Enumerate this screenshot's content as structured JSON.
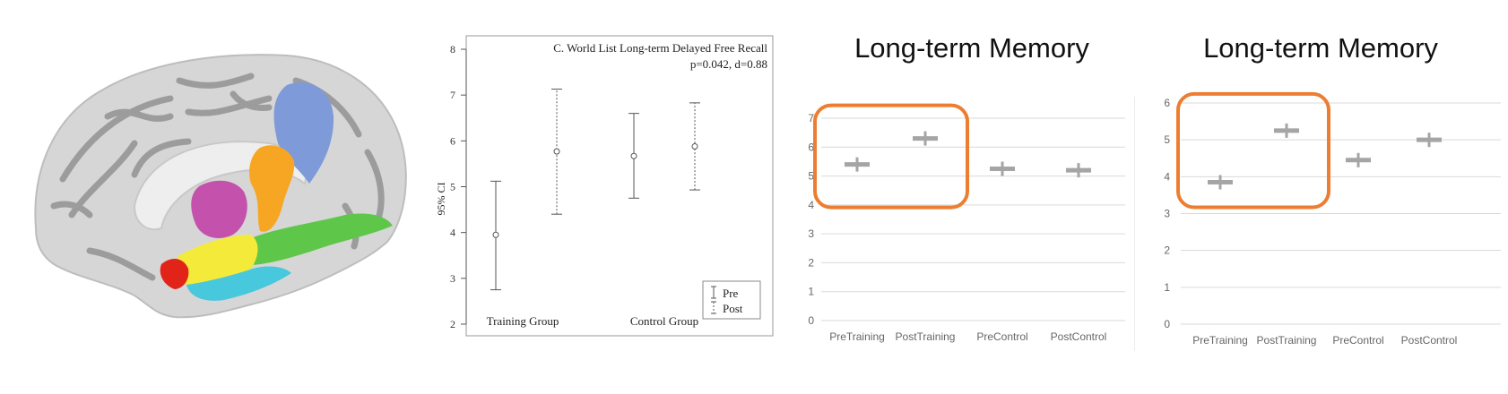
{
  "brain": {
    "regions": [
      {
        "name": "medial-parietal",
        "color": "#7f9ad8"
      },
      {
        "name": "posterior-cingulate",
        "color": "#f6a623"
      },
      {
        "name": "thalamus",
        "color": "#c452ad"
      },
      {
        "name": "parahippocampal",
        "color": "#5ec74a"
      },
      {
        "name": "hippocampus",
        "color": "#f4ea3a"
      },
      {
        "name": "entorhinal",
        "color": "#47c8dc"
      },
      {
        "name": "temporal-pole",
        "color": "#e2231a"
      }
    ]
  },
  "chart_data": [
    {
      "type": "errorbar",
      "title": "C. World List Long-term Delayed Free Recall",
      "subtitle": "p=0.042, d=0.88",
      "xlabel": "",
      "ylabel": "95% CI",
      "ylim": [
        2,
        8
      ],
      "yticks": [
        "2",
        "3",
        "4",
        "5",
        "6",
        "7",
        "8"
      ],
      "categories": [
        "Training Group",
        "Control Group"
      ],
      "legend_position": "bottom-right",
      "series": [
        {
          "name": "Pre",
          "style": "solid",
          "points": [
            {
              "category": "Training Group",
              "mean": 3.95,
              "low": 2.75,
              "high": 5.12
            },
            {
              "category": "Control Group",
              "mean": 5.67,
              "low": 4.75,
              "high": 6.6
            }
          ]
        },
        {
          "name": "Post",
          "style": "dotted",
          "points": [
            {
              "category": "Training Group",
              "mean": 5.77,
              "low": 4.4,
              "high": 7.13
            },
            {
              "category": "Control Group",
              "mean": 5.88,
              "low": 4.93,
              "high": 6.83
            }
          ]
        }
      ]
    },
    {
      "type": "scatter",
      "title": "Long-term Memory",
      "ylim": [
        0,
        7
      ],
      "yticks": [
        "0",
        "1",
        "2",
        "3",
        "4",
        "5",
        "6",
        "7"
      ],
      "categories": [
        "PreTraining",
        "PostTraining",
        "PreControl",
        "PostControl"
      ],
      "values": [
        5.4,
        6.3,
        5.25,
        5.2
      ],
      "highlight": {
        "categories": [
          "PreTraining",
          "PostTraining"
        ],
        "color": "#ed7d31"
      }
    },
    {
      "type": "scatter",
      "title": "Long-term Memory",
      "ylim": [
        0,
        6
      ],
      "yticks": [
        "0",
        "1",
        "2",
        "3",
        "4",
        "5",
        "6"
      ],
      "categories": [
        "PreTraining",
        "PostTraining",
        "PreControl",
        "PostControl"
      ],
      "values": [
        3.85,
        5.25,
        4.45,
        5.0
      ],
      "highlight": {
        "categories": [
          "PreTraining",
          "PostTraining"
        ],
        "color": "#ed7d31"
      }
    }
  ]
}
